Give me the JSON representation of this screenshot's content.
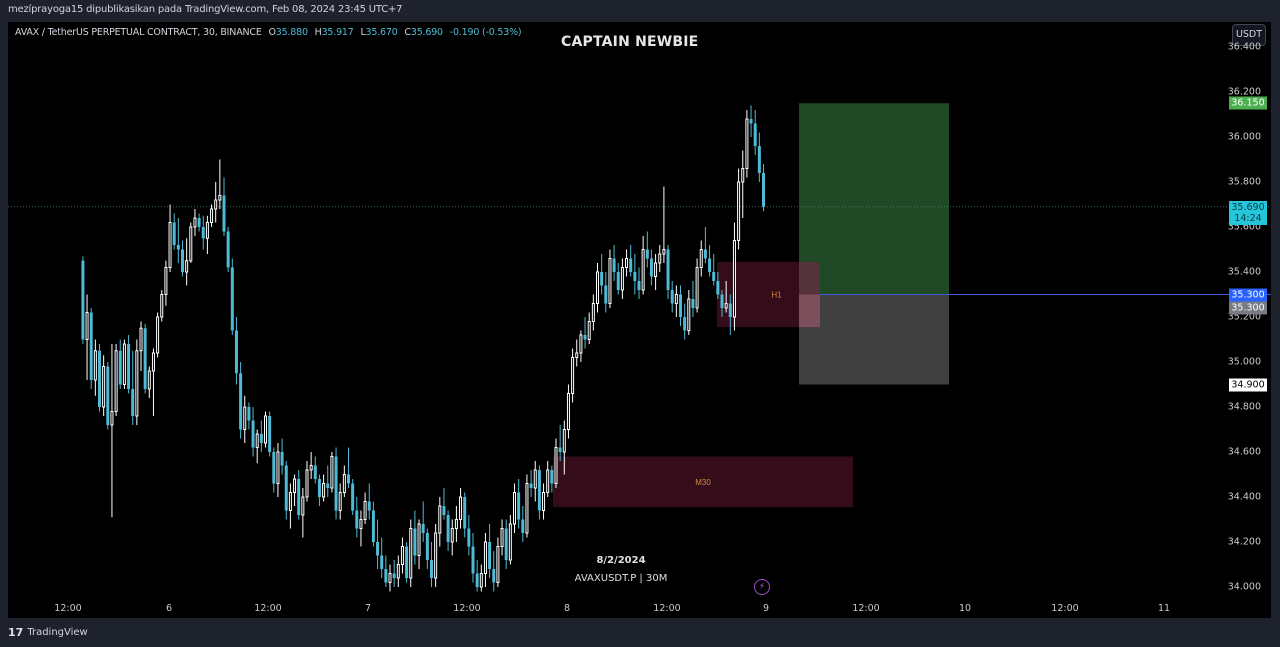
{
  "header": {
    "published_line": "mezíprayoga15 dipublikasikan pada TradingView.com, Feb 08, 2024 23:45 UTC+7"
  },
  "legend": {
    "symbol": "AVAX / TetherUS PERPETUAL CONTRACT, 30, BINANCE",
    "o_label": "O",
    "o": "35.880",
    "h_label": "H",
    "h": "35.917",
    "l_label": "L",
    "l": "35.670",
    "c_label": "C",
    "c": "35.690",
    "change": "-0.190 (-0.53%)"
  },
  "chart_title": "CAPTAIN NEWBIE",
  "currency_button": "USDT",
  "watermark": {
    "date": "8/2/2024",
    "symbol_tf": "AVAXUSDT.P | 30M"
  },
  "footer": {
    "logo": "17",
    "brand": "TradingView"
  },
  "colors": {
    "background": "#000000",
    "frame": "#1e222d",
    "bull": "#ffffff",
    "bear": "#4dbbd5",
    "target_zone": "#1f4a25",
    "stop_zone": "#404040",
    "order_block": "#3a0d1c",
    "zone_label": "#d08a40",
    "entry_line": "#3a5bd9",
    "label_target": "#4caf50",
    "label_current": "#26c6da",
    "label_entry": "#2962ff",
    "label_entry2": "#787b86",
    "label_stop": "#ffffff"
  },
  "chart_data": {
    "type": "candlestick",
    "title": "CAPTAIN NEWBIE",
    "symbol": "AVAX / TetherUS PERPETUAL CONTRACT",
    "timeframe": "30",
    "exchange": "BINANCE",
    "xlabel": "",
    "ylabel": "USDT",
    "y_ticks": [
      "36.400",
      "36.200",
      "36.000",
      "35.800",
      "35.600",
      "35.400",
      "35.200",
      "35.000",
      "34.800",
      "34.600",
      "34.400",
      "34.200",
      "34.000"
    ],
    "x_ticks": [
      "12:00",
      "6",
      "12:00",
      "7",
      "12:00",
      "8",
      "12:00",
      "9",
      "12:00",
      "10",
      "12:00",
      "11"
    ],
    "ylim": [
      33.97,
      36.48
    ],
    "grid": false,
    "last_price": "35.690",
    "countdown": "14:24",
    "price_labels": [
      {
        "value": "36.150",
        "kind": "target"
      },
      {
        "value": "35.690",
        "kind": "current",
        "sub": "14:24"
      },
      {
        "value": "35.300",
        "kind": "entry"
      },
      {
        "value": "35.300",
        "kind": "entry-alt"
      },
      {
        "value": "34.900",
        "kind": "stop"
      }
    ],
    "position_tool": {
      "direction": "long",
      "entry": 35.3,
      "target": 36.15,
      "stop": 34.9
    },
    "zones": [
      {
        "label": "H1",
        "top": 35.445,
        "bottom": 35.155
      },
      {
        "label": "M30",
        "top": 34.58,
        "bottom": 34.355
      }
    ],
    "ohlc_note": "approximate 30-minute candles traced from the screenshot, Feb 5 ~03:00 to Feb 9 ~00:00",
    "ohlc": [
      [
        35.45,
        35.47,
        35.08,
        35.1
      ],
      [
        35.1,
        35.3,
        34.92,
        35.22
      ],
      [
        35.22,
        35.24,
        34.88,
        34.92
      ],
      [
        34.92,
        35.1,
        34.85,
        35.05
      ],
      [
        35.05,
        35.08,
        34.78,
        34.8
      ],
      [
        34.8,
        35.03,
        34.76,
        34.98
      ],
      [
        34.98,
        35.0,
        34.7,
        34.72
      ],
      [
        34.72,
        35.08,
        34.31,
        34.78
      ],
      [
        34.78,
        35.08,
        34.76,
        35.05
      ],
      [
        35.05,
        35.1,
        34.88,
        34.9
      ],
      [
        34.9,
        35.1,
        34.88,
        35.08
      ],
      [
        35.08,
        35.12,
        34.86,
        34.88
      ],
      [
        34.88,
        35.05,
        34.72,
        34.76
      ],
      [
        34.76,
        35.1,
        34.72,
        35.05
      ],
      [
        35.05,
        35.18,
        34.96,
        35.15
      ],
      [
        35.15,
        35.17,
        34.86,
        34.88
      ],
      [
        34.88,
        34.98,
        34.84,
        34.96
      ],
      [
        34.96,
        35.06,
        34.76,
        35.04
      ],
      [
        35.04,
        35.22,
        35.02,
        35.2
      ],
      [
        35.2,
        35.32,
        35.18,
        35.3
      ],
      [
        35.3,
        35.45,
        35.25,
        35.42
      ],
      [
        35.42,
        35.7,
        35.4,
        35.62
      ],
      [
        35.62,
        35.66,
        35.5,
        35.52
      ],
      [
        35.52,
        35.64,
        35.44,
        35.5
      ],
      [
        35.5,
        35.54,
        35.38,
        35.4
      ],
      [
        35.4,
        35.55,
        35.34,
        35.45
      ],
      [
        35.45,
        35.62,
        35.44,
        35.6
      ],
      [
        35.6,
        35.68,
        35.56,
        35.64
      ],
      [
        35.64,
        35.66,
        35.58,
        35.6
      ],
      [
        35.6,
        35.65,
        35.5,
        35.55
      ],
      [
        35.55,
        35.65,
        35.48,
        35.62
      ],
      [
        35.62,
        35.7,
        35.6,
        35.68
      ],
      [
        35.68,
        35.8,
        35.62,
        35.72
      ],
      [
        35.72,
        35.9,
        35.68,
        35.74
      ],
      [
        35.74,
        35.82,
        35.56,
        35.58
      ],
      [
        35.58,
        35.6,
        35.4,
        35.42
      ],
      [
        35.42,
        35.46,
        35.12,
        35.14
      ],
      [
        35.14,
        35.2,
        34.9,
        34.95
      ],
      [
        34.95,
        35.0,
        34.66,
        34.7
      ],
      [
        34.7,
        34.85,
        34.64,
        34.8
      ],
      [
        34.8,
        34.82,
        34.7,
        34.74
      ],
      [
        34.74,
        34.8,
        34.58,
        34.62
      ],
      [
        34.62,
        34.7,
        34.55,
        34.68
      ],
      [
        34.68,
        34.74,
        34.6,
        34.64
      ],
      [
        34.64,
        34.78,
        34.62,
        34.76
      ],
      [
        34.76,
        34.78,
        34.58,
        34.6
      ],
      [
        34.6,
        34.62,
        34.42,
        34.46
      ],
      [
        34.46,
        34.64,
        34.4,
        34.6
      ],
      [
        34.6,
        34.66,
        34.5,
        34.54
      ],
      [
        34.54,
        34.56,
        34.3,
        34.34
      ],
      [
        34.34,
        34.46,
        34.26,
        34.42
      ],
      [
        34.42,
        34.5,
        34.36,
        34.48
      ],
      [
        34.48,
        34.52,
        34.3,
        34.32
      ],
      [
        34.32,
        34.44,
        34.22,
        34.4
      ],
      [
        34.4,
        34.56,
        34.38,
        34.52
      ],
      [
        34.52,
        34.6,
        34.48,
        34.54
      ],
      [
        34.54,
        34.58,
        34.46,
        34.48
      ],
      [
        34.48,
        34.5,
        34.36,
        34.4
      ],
      [
        34.4,
        34.5,
        34.38,
        34.46
      ],
      [
        34.46,
        34.54,
        34.4,
        34.44
      ],
      [
        34.44,
        34.6,
        34.42,
        34.58
      ],
      [
        34.58,
        34.62,
        34.3,
        34.34
      ],
      [
        34.34,
        34.46,
        34.3,
        34.42
      ],
      [
        34.42,
        34.54,
        34.4,
        34.5
      ],
      [
        34.5,
        34.62,
        34.44,
        34.46
      ],
      [
        34.46,
        34.48,
        34.32,
        34.34
      ],
      [
        34.34,
        34.4,
        34.22,
        34.26
      ],
      [
        34.26,
        34.34,
        34.18,
        34.3
      ],
      [
        34.3,
        34.42,
        34.28,
        34.38
      ],
      [
        34.38,
        34.46,
        34.3,
        34.34
      ],
      [
        34.34,
        34.38,
        34.18,
        34.2
      ],
      [
        34.2,
        34.3,
        34.08,
        34.14
      ],
      [
        34.14,
        34.22,
        34.04,
        34.08
      ],
      [
        34.08,
        34.14,
        34.0,
        34.02
      ],
      [
        34.02,
        34.1,
        33.98,
        34.06
      ],
      [
        34.06,
        34.12,
        34.0,
        34.04
      ],
      [
        34.04,
        34.14,
        34.0,
        34.1
      ],
      [
        34.1,
        34.22,
        34.06,
        34.18
      ],
      [
        34.18,
        34.2,
        34.02,
        34.04
      ],
      [
        34.04,
        34.3,
        34.0,
        34.26
      ],
      [
        34.26,
        34.34,
        34.1,
        34.14
      ],
      [
        34.14,
        34.3,
        34.08,
        34.28
      ],
      [
        34.28,
        34.38,
        34.2,
        34.24
      ],
      [
        34.24,
        34.26,
        34.08,
        34.12
      ],
      [
        34.12,
        34.2,
        34.0,
        34.04
      ],
      [
        34.04,
        34.28,
        34.0,
        34.24
      ],
      [
        34.24,
        34.4,
        34.18,
        34.36
      ],
      [
        34.36,
        34.44,
        34.3,
        34.32
      ],
      [
        34.32,
        34.34,
        34.16,
        34.2
      ],
      [
        34.2,
        34.3,
        34.14,
        34.26
      ],
      [
        34.26,
        34.36,
        34.2,
        34.3
      ],
      [
        34.3,
        34.44,
        34.26,
        34.4
      ],
      [
        34.4,
        34.42,
        34.22,
        34.26
      ],
      [
        34.26,
        34.32,
        34.14,
        34.18
      ],
      [
        34.18,
        34.24,
        34.02,
        34.06
      ],
      [
        34.06,
        34.12,
        33.98,
        34.0
      ],
      [
        34.0,
        34.1,
        33.98,
        34.06
      ],
      [
        34.06,
        34.24,
        34.0,
        34.2
      ],
      [
        34.2,
        34.28,
        34.04,
        34.08
      ],
      [
        34.08,
        34.16,
        33.98,
        34.02
      ],
      [
        34.02,
        34.22,
        34.0,
        34.18
      ],
      [
        34.18,
        34.3,
        34.14,
        34.26
      ],
      [
        34.26,
        34.3,
        34.08,
        34.12
      ],
      [
        34.12,
        34.32,
        34.1,
        34.28
      ],
      [
        34.28,
        34.46,
        34.24,
        34.42
      ],
      [
        34.42,
        34.48,
        34.26,
        34.3
      ],
      [
        34.3,
        34.36,
        34.2,
        34.24
      ],
      [
        34.24,
        34.5,
        34.22,
        34.46
      ],
      [
        34.46,
        34.52,
        34.4,
        34.44
      ],
      [
        34.44,
        34.56,
        34.38,
        34.52
      ],
      [
        34.52,
        34.54,
        34.3,
        34.34
      ],
      [
        34.34,
        34.46,
        34.3,
        34.42
      ],
      [
        34.42,
        34.56,
        34.4,
        34.52
      ],
      [
        34.52,
        34.54,
        34.42,
        34.46
      ],
      [
        34.46,
        34.66,
        34.44,
        34.62
      ],
      [
        34.62,
        34.72,
        34.56,
        34.6
      ],
      [
        34.6,
        34.74,
        34.5,
        34.7
      ],
      [
        34.7,
        34.9,
        34.66,
        34.86
      ],
      [
        34.86,
        35.06,
        34.82,
        35.02
      ],
      [
        35.02,
        35.1,
        34.98,
        35.04
      ],
      [
        35.04,
        35.14,
        35.0,
        35.12
      ],
      [
        35.12,
        35.2,
        35.06,
        35.1
      ],
      [
        35.1,
        35.22,
        35.08,
        35.18
      ],
      [
        35.18,
        35.3,
        35.14,
        35.26
      ],
      [
        35.26,
        35.44,
        35.22,
        35.4
      ],
      [
        35.4,
        35.48,
        35.3,
        35.34
      ],
      [
        35.34,
        35.4,
        35.22,
        35.26
      ],
      [
        35.26,
        35.5,
        35.24,
        35.46
      ],
      [
        35.46,
        35.52,
        35.36,
        35.4
      ],
      [
        35.4,
        35.44,
        35.3,
        35.32
      ],
      [
        35.32,
        35.46,
        35.28,
        35.42
      ],
      [
        35.42,
        35.5,
        35.38,
        35.46
      ],
      [
        35.46,
        35.52,
        35.38,
        35.4
      ],
      [
        35.4,
        35.48,
        35.3,
        35.36
      ],
      [
        35.36,
        35.42,
        35.28,
        35.32
      ],
      [
        35.32,
        35.56,
        35.3,
        35.5
      ],
      [
        35.5,
        35.58,
        35.42,
        35.46
      ],
      [
        35.46,
        35.5,
        35.34,
        35.38
      ],
      [
        35.38,
        35.48,
        35.32,
        35.44
      ],
      [
        35.44,
        35.52,
        35.4,
        35.48
      ],
      [
        35.48,
        35.78,
        35.44,
        35.5
      ],
      [
        35.5,
        35.52,
        35.28,
        35.32
      ],
      [
        35.32,
        35.36,
        35.22,
        35.26
      ],
      [
        35.26,
        35.34,
        35.2,
        35.3
      ],
      [
        35.3,
        35.34,
        35.16,
        35.2
      ],
      [
        35.2,
        35.26,
        35.1,
        35.14
      ],
      [
        35.14,
        35.32,
        35.12,
        35.28
      ],
      [
        35.28,
        35.36,
        35.2,
        35.24
      ],
      [
        35.24,
        35.46,
        35.22,
        35.42
      ],
      [
        35.42,
        35.54,
        35.38,
        35.5
      ],
      [
        35.5,
        35.6,
        35.44,
        35.46
      ],
      [
        35.46,
        35.52,
        35.38,
        35.4
      ],
      [
        35.4,
        35.48,
        35.34,
        35.36
      ],
      [
        35.36,
        35.4,
        35.28,
        35.3
      ],
      [
        35.3,
        35.32,
        35.2,
        35.24
      ],
      [
        35.24,
        35.36,
        35.22,
        35.26
      ],
      [
        35.26,
        35.3,
        35.12,
        35.2
      ],
      [
        35.2,
        35.62,
        35.14,
        35.54
      ],
      [
        35.54,
        35.86,
        35.5,
        35.8
      ],
      [
        35.8,
        35.94,
        35.64,
        35.86
      ],
      [
        35.86,
        36.12,
        35.82,
        36.08
      ],
      [
        36.08,
        36.14,
        36.0,
        36.06
      ],
      [
        36.06,
        36.12,
        35.92,
        35.96
      ],
      [
        35.96,
        36.02,
        35.8,
        35.84
      ],
      [
        35.84,
        35.88,
        35.67,
        35.69
      ]
    ]
  }
}
